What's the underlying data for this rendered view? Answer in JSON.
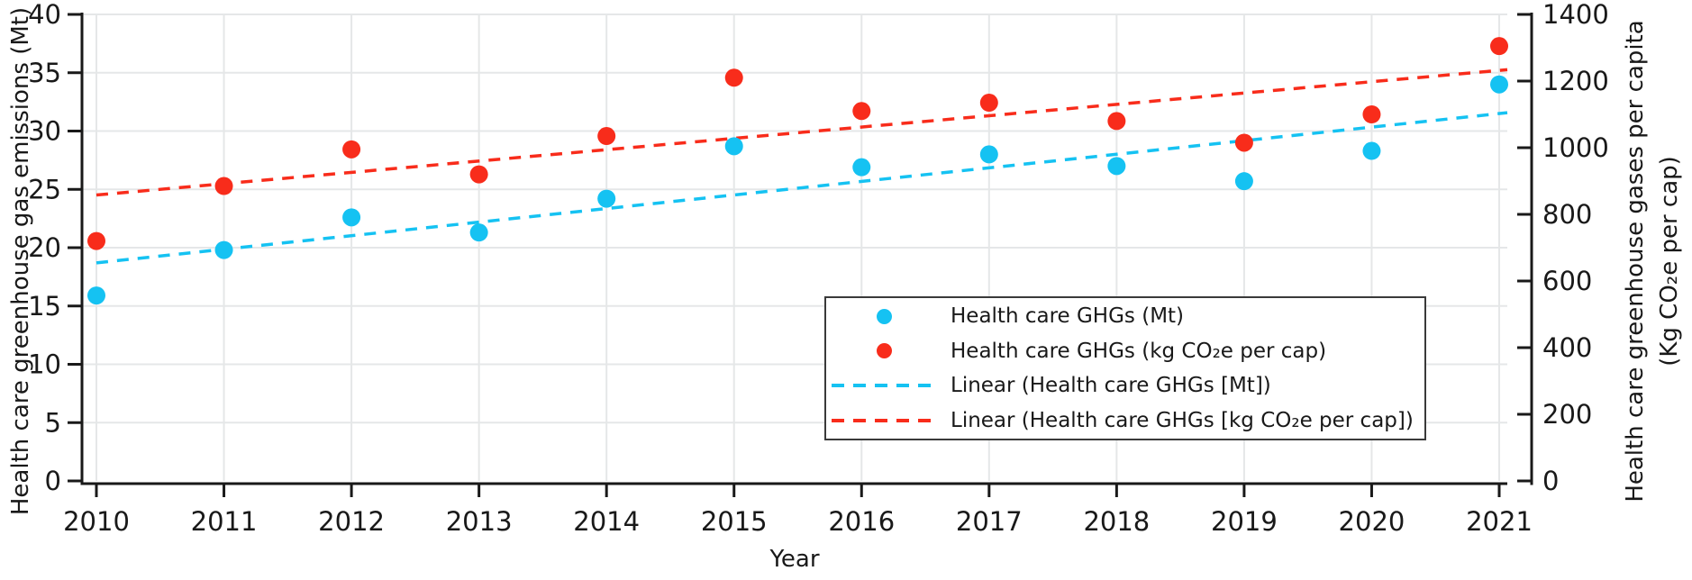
{
  "chart_data": {
    "type": "scatter",
    "title": "",
    "grid": true,
    "legend_position": "inside-right-center",
    "x": [
      2010,
      2011,
      2012,
      2013,
      2014,
      2015,
      2016,
      2017,
      2018,
      2019,
      2020,
      2021
    ],
    "axes": {
      "x": {
        "label": "Year",
        "ticks": [
          "2010",
          "2011",
          "2012",
          "2013",
          "2014",
          "2015",
          "2016",
          "2017",
          "2018",
          "2019",
          "2020",
          "2021"
        ]
      },
      "left": {
        "label": "Health care greenhouse gas emissions (Mt)",
        "min": 0,
        "max": 40,
        "step": 5
      },
      "right": {
        "label_line1": "Health care greenhouse gases per capita",
        "label_line2": "(Kg CO₂e per cap)",
        "min": 0,
        "max": 1400,
        "step": 200
      }
    },
    "series": [
      {
        "name": "Health care GHGs (Mt)",
        "axis": "left",
        "marker": "dot",
        "color": "#15C2F2",
        "values": [
          15.9,
          19.8,
          22.6,
          21.3,
          24.2,
          28.7,
          26.9,
          28.0,
          27.0,
          25.7,
          28.3,
          34.0
        ]
      },
      {
        "name": "Health care GHGs (kg CO₂e per cap)",
        "axis": "right",
        "marker": "dot",
        "color": "#F82C1B",
        "values": [
          720,
          885,
          995,
          920,
          1035,
          1210,
          1110,
          1135,
          1080,
          1015,
          1100,
          1305
        ]
      }
    ],
    "trendlines": [
      {
        "name": "Linear (Health care GHGs [Mt])",
        "axis": "left",
        "color": "#15C2F2",
        "start_value_2010": 18.7,
        "end_value_2021": 31.5
      },
      {
        "name": "Linear (Health care GHGs [kg CO₂e per cap])",
        "axis": "right",
        "color": "#F82C1B",
        "start_value_2010": 858,
        "end_value_2021": 1232
      }
    ],
    "legend": {
      "items": [
        {
          "label": "Health care GHGs (Mt)",
          "marker": "dot",
          "color": "#15C2F2"
        },
        {
          "label": "Health care GHGs (kg CO₂e per cap)",
          "marker": "dot",
          "color": "#F82C1B"
        },
        {
          "label": "Linear (Health care GHGs [Mt])",
          "marker": "dash",
          "color": "#15C2F2"
        },
        {
          "label": "Linear (Health care GHGs [kg CO₂e per cap])",
          "marker": "dash",
          "color": "#F82C1B"
        }
      ]
    }
  },
  "colors": {
    "background": "#FFFFFF",
    "gridline": "#E5E7E8",
    "axis_ink": "#191919",
    "series_mt": "#15C2F2",
    "series_per_capita": "#F82C1B"
  }
}
